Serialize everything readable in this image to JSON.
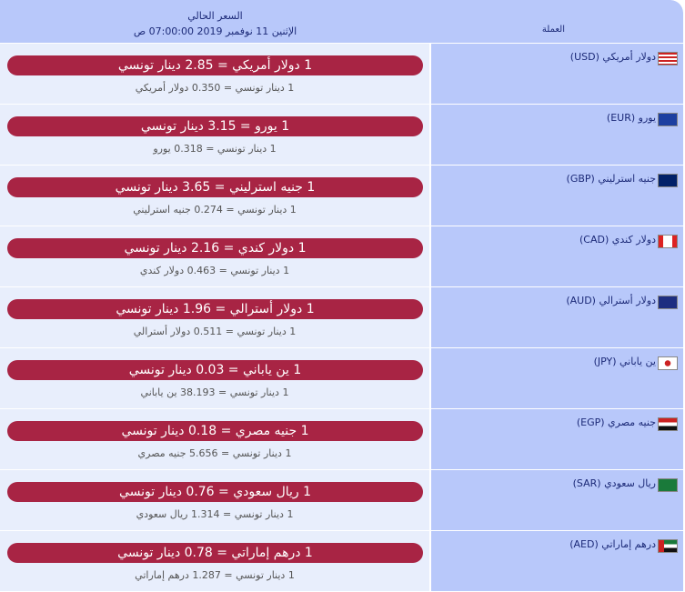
{
  "header": {
    "price_title": "السعر الحالي",
    "datetime": "الإثنين 11 نوفمبر 2019 07:00:00 ص",
    "currency_title": "العملة"
  },
  "rows": [
    {
      "code": "USD",
      "name": "دولار أمريكي (USD)",
      "rate": "1 دولار أمريكي = 2.85 دينار تونسي",
      "inverse": "1 دينار تونسي = 0.350 دولار أمريكي",
      "flag": "us-flag"
    },
    {
      "code": "EUR",
      "name": "يورو (EUR)",
      "rate": "1 يورو = 3.15 دينار تونسي",
      "inverse": "1 دينار تونسي = 0.318 يورو",
      "flag": "eu-flag"
    },
    {
      "code": "GBP",
      "name": "جنيه استرليني (GBP)",
      "rate": "1 جنيه استرليني = 3.65 دينار تونسي",
      "inverse": "1 دينار تونسي = 0.274 جنيه استرليني",
      "flag": "uk-flag"
    },
    {
      "code": "CAD",
      "name": "دولار كندي (CAD)",
      "rate": "1 دولار كندي = 2.16 دينار تونسي",
      "inverse": "1 دينار تونسي = 0.463 دولار كندي",
      "flag": "canada-flag"
    },
    {
      "code": "AUD",
      "name": "دولار أسترالي (AUD)",
      "rate": "1 دولار أسترالي = 1.96 دينار تونسي",
      "inverse": "1 دينار تونسي = 0.511 دولار أسترالي",
      "flag": "australia-flag"
    },
    {
      "code": "JPY",
      "name": "ين ياباني (JPY)",
      "rate": "1 ين ياباني = 0.03 دينار تونسي",
      "inverse": "1 دينار تونسي = 38.193 ين ياباني",
      "flag": "japan-flag"
    },
    {
      "code": "EGP",
      "name": "جنيه مصري (EGP)",
      "rate": "1 جنيه مصري = 0.18 دينار تونسي",
      "inverse": "1 دينار تونسي = 5.656 جنيه مصري",
      "flag": "egypt-flag"
    },
    {
      "code": "SAR",
      "name": "ريال سعودي (SAR)",
      "rate": "1 ريال سعودي = 0.76 دينار تونسي",
      "inverse": "1 دينار تونسي = 1.314 ريال سعودي",
      "flag": "saudi-flag"
    },
    {
      "code": "AED",
      "name": "درهم إماراتي (AED)",
      "rate": "1 درهم إماراتي = 0.78 دينار تونسي",
      "inverse": "1 دينار تونسي = 1.287 درهم إماراتي",
      "flag": "uae-flag"
    }
  ],
  "colors": {
    "header": "#b8c8fa",
    "rate_pill": "#a82444",
    "left_cell": "#e8eefc"
  }
}
